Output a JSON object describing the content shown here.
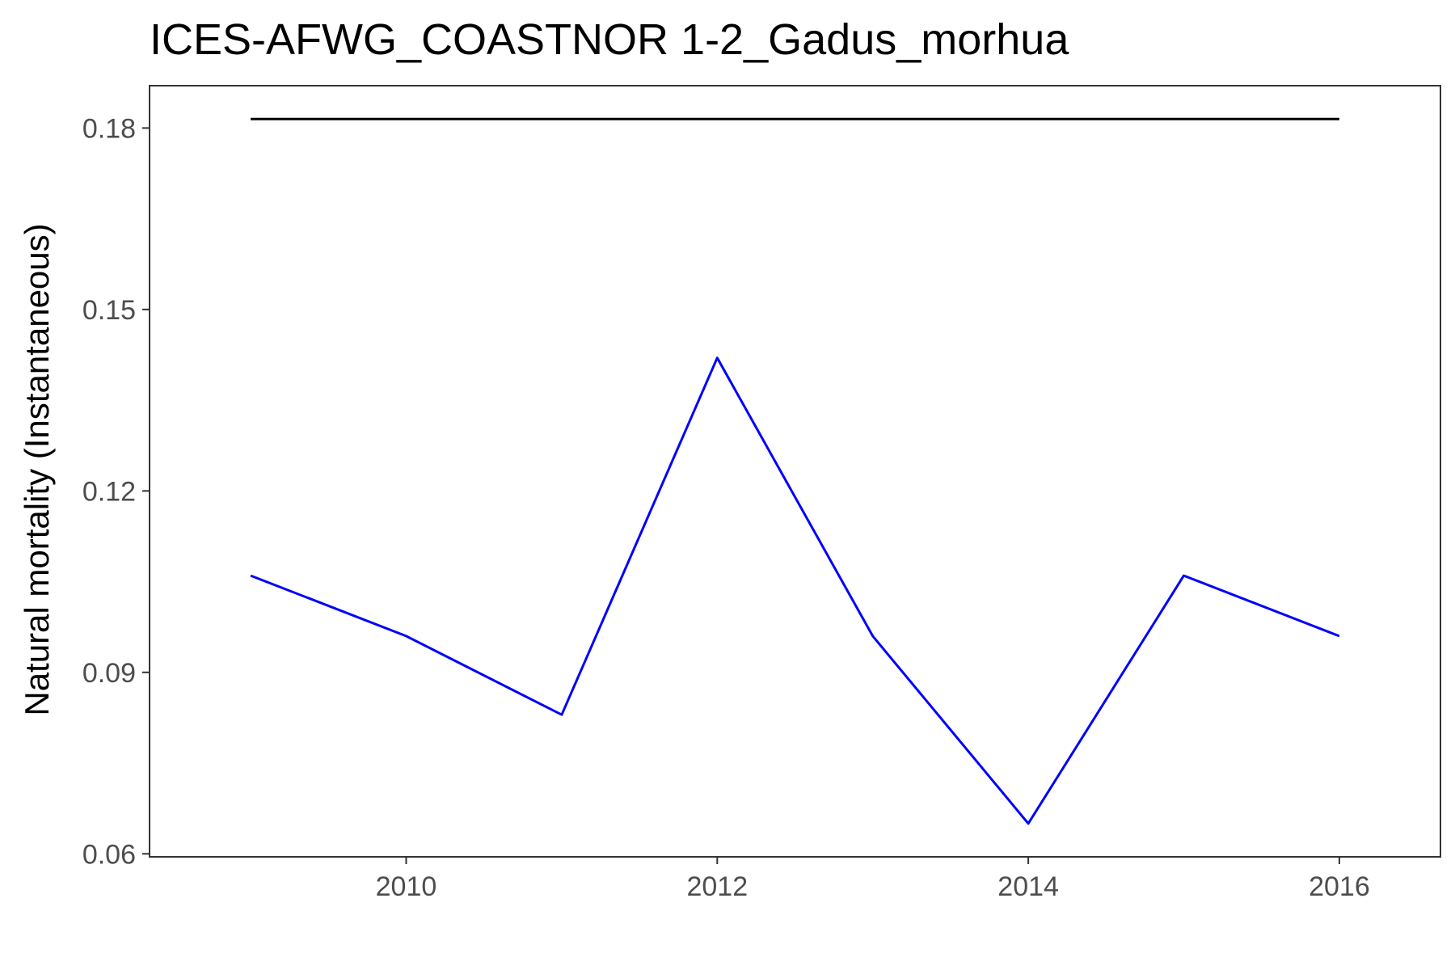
{
  "chart_data": {
    "type": "line",
    "title": "ICES-AFWG_COASTNOR 1-2_Gadus_morhua",
    "xlabel": "",
    "ylabel": "Natural mortality (Instantaneous)",
    "x": [
      2009,
      2010,
      2011,
      2012,
      2013,
      2014,
      2015,
      2016
    ],
    "xlim": [
      2008.35,
      2016.65
    ],
    "ylim": [
      0.0595,
      0.187
    ],
    "x_ticks": [
      2010,
      2012,
      2014,
      2016
    ],
    "y_ticks": [
      0.06,
      0.09,
      0.12,
      0.15,
      0.18
    ],
    "x_tick_labels": [
      "2010",
      "2012",
      "2014",
      "2016"
    ],
    "y_tick_labels": [
      "0.06",
      "0.09",
      "0.12",
      "0.15",
      "0.18"
    ],
    "grid": false,
    "legend": "none",
    "series": [
      {
        "color": "#0000ff",
        "values": [
          0.106,
          0.096,
          0.083,
          0.142,
          0.096,
          0.065,
          0.106,
          0.096
        ]
      },
      {
        "color": "#000000",
        "values": [
          0.1815,
          0.1815,
          0.1815,
          0.1815,
          0.1815,
          0.1815,
          0.1815,
          0.1815
        ]
      }
    ]
  }
}
